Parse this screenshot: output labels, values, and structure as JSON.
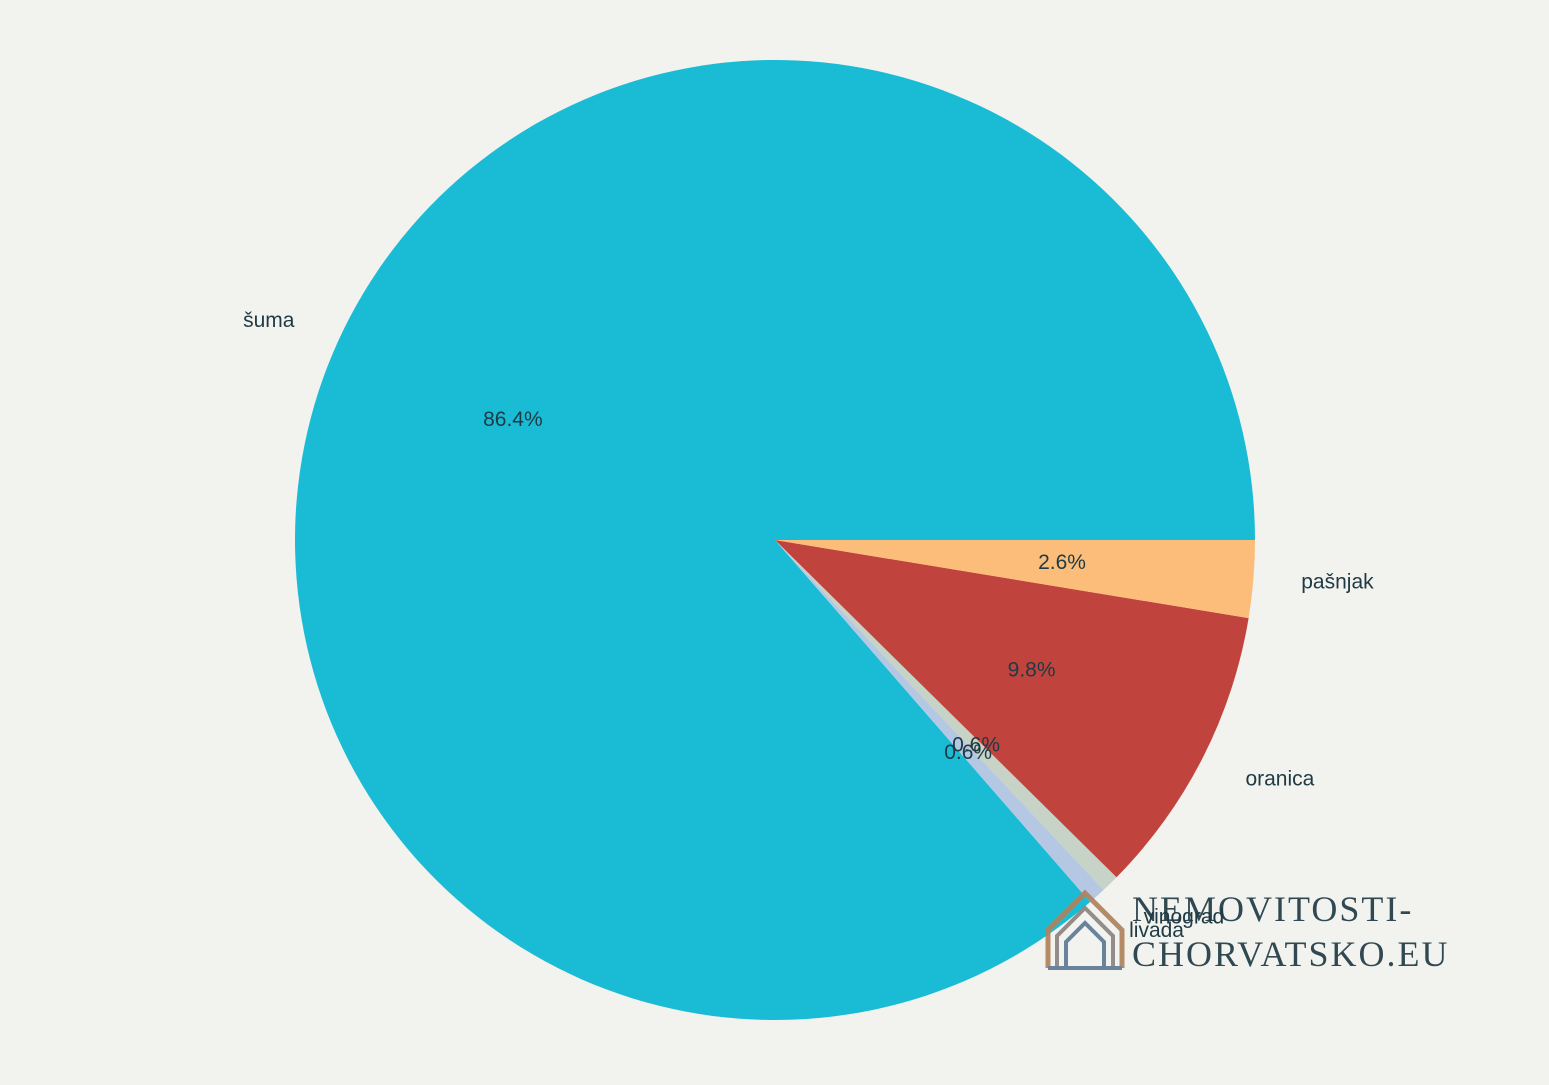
{
  "chart_data": {
    "type": "pie",
    "title": "",
    "categories": [
      "šuma",
      "livada",
      "vinograd",
      "oranica",
      "pašnjak"
    ],
    "values": [
      86.4,
      0.6,
      0.6,
      9.8,
      2.6
    ],
    "percent_labels": [
      "86.4%",
      "0.6%",
      "0.6%",
      "9.8%",
      "2.6%"
    ],
    "colors": [
      "#1abcd5",
      "#b4c8e4",
      "#c6d3c6",
      "#c0443d",
      "#fdbd7a"
    ],
    "start_angle_deg": 0,
    "direction": "counterclockwise",
    "legend": "none"
  },
  "watermark": {
    "line1": "NEMOVITOSTI-",
    "line2": "CHORVATSKO.EU",
    "color_line1": "#b0825c",
    "color_line2": "#5e7a96",
    "icon": "house-logo-icon"
  },
  "colors": {
    "background": "#f2f2ee",
    "text": "#1f3a44"
  }
}
